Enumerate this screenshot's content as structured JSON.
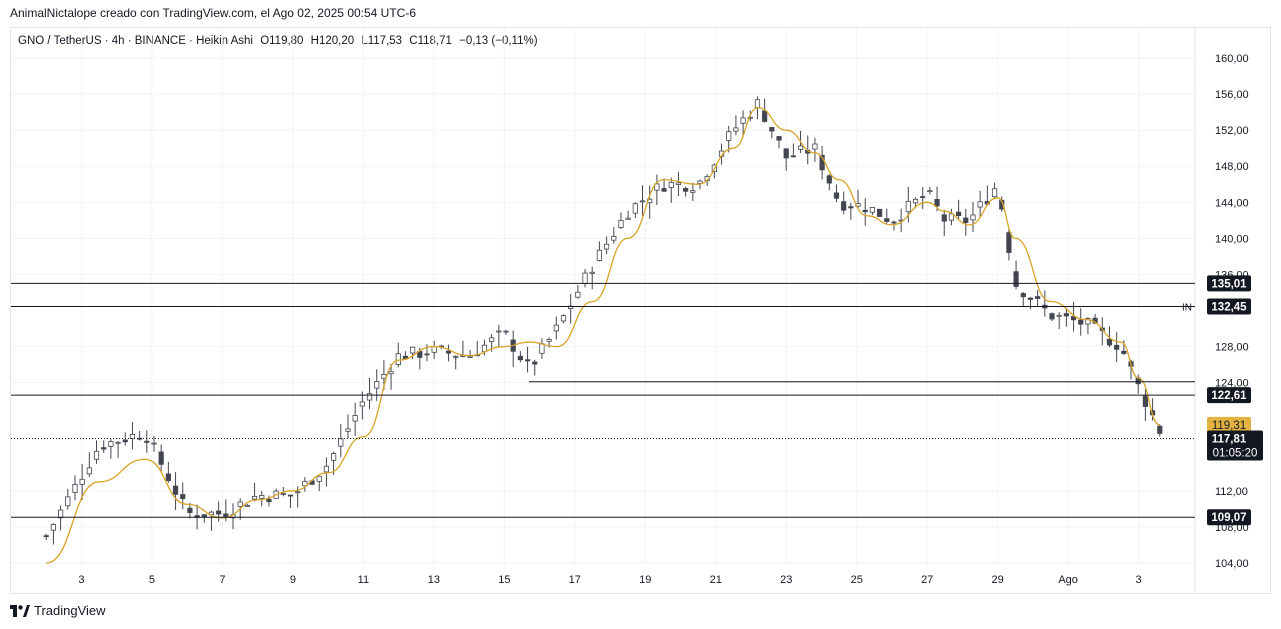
{
  "header": {
    "attribution": "AnimalNictalope creado con TradingView.com, el Ago 02, 2025 00:54 UTC-6"
  },
  "legend": {
    "symbol": "GNO / TetherUS · 4h · BINANCE · Heikin Ashi",
    "open": "O119,80",
    "high": "H120,20",
    "low": "L117,53",
    "close": "C118,71",
    "change": "−0,13 (−0,11%)"
  },
  "footer": {
    "brand": "TradingView"
  },
  "colors": {
    "bull_body": "#ffffff",
    "bear_body": "#434651",
    "candle_border": "#434651",
    "ma_line": "#d8a326",
    "level_line": "#131722",
    "price_tag_bg": "#131722",
    "ma_tag_bg": "#e3b341",
    "grid": "#f0f3fa"
  },
  "chart_data": {
    "type": "candlestick",
    "title": "GNO / TetherUS · 4h · BINANCE · Heikin Ashi",
    "ylim": [
      101,
      163
    ],
    "y_ticks": [
      "160,00",
      "156,00",
      "152,00",
      "148,00",
      "144,00",
      "140,00",
      "136,00",
      "128,00",
      "124,00",
      "112,00",
      "108,00",
      "104,00"
    ],
    "x_ticks": [
      "3",
      "5",
      "7",
      "9",
      "11",
      "13",
      "15",
      "17",
      "19",
      "21",
      "23",
      "25",
      "27",
      "29",
      "Ago",
      "3"
    ],
    "horizontal_levels": [
      {
        "label": "135,01",
        "value": 135.01,
        "badge": true
      },
      {
        "label": "132,45",
        "value": 132.45,
        "badge": true,
        "tag": "IN"
      },
      {
        "label": "",
        "value": 124.1,
        "badge": false
      },
      {
        "label": "122,61",
        "value": 122.61,
        "badge": true
      },
      {
        "label": "109,07",
        "value": 109.07,
        "badge": true
      }
    ],
    "ma_value_label": "119,31",
    "last_price_label": "117,81",
    "countdown_label": "01:05:20",
    "last_price": 117.81,
    "series": [
      {
        "name": "Heikin Ashi",
        "points": [
          [
            1,
            107.0
          ],
          [
            2.5,
            117.0
          ],
          [
            3.8,
            118.5
          ],
          [
            5,
            109.5
          ],
          [
            6,
            109.5
          ],
          [
            7,
            111.5
          ],
          [
            8,
            111.5
          ],
          [
            9,
            115.0
          ],
          [
            10,
            122.0
          ],
          [
            11,
            127.0
          ],
          [
            12,
            127.5
          ],
          [
            13,
            127.0
          ],
          [
            14,
            129.5
          ],
          [
            14.7,
            125.5
          ],
          [
            15.5,
            130.0
          ],
          [
            16.5,
            137.0
          ],
          [
            17.5,
            143.0
          ],
          [
            18.5,
            146.0
          ],
          [
            19.5,
            146.0
          ],
          [
            20.5,
            152.0
          ],
          [
            21.2,
            155.0
          ],
          [
            22,
            149.0
          ],
          [
            22.8,
            150.0
          ],
          [
            23.5,
            144.0
          ],
          [
            24.3,
            143.5
          ],
          [
            25,
            142.0
          ],
          [
            26,
            145.0
          ],
          [
            26.5,
            142.0
          ],
          [
            27.2,
            142.0
          ],
          [
            28,
            146.0
          ],
          [
            28.5,
            135.0
          ],
          [
            29.5,
            131.5
          ],
          [
            30.5,
            130.5
          ],
          [
            31.5,
            128.0
          ],
          [
            32,
            123.5
          ],
          [
            32.6,
            118.7
          ]
        ]
      },
      {
        "name": "MA",
        "points": [
          [
            1,
            104.0
          ],
          [
            2.5,
            113.0
          ],
          [
            3.8,
            115.5
          ],
          [
            5,
            110.5
          ],
          [
            6,
            109.0
          ],
          [
            7,
            111.0
          ],
          [
            8,
            112.0
          ],
          [
            9,
            114.0
          ],
          [
            10,
            118.0
          ],
          [
            11,
            126.5
          ],
          [
            12,
            128.0
          ],
          [
            13,
            127.0
          ],
          [
            14,
            128.0
          ],
          [
            14.7,
            128.5
          ],
          [
            15.5,
            128.0
          ],
          [
            16.5,
            133.0
          ],
          [
            17.5,
            140.0
          ],
          [
            18.5,
            146.5
          ],
          [
            19.5,
            146.0
          ],
          [
            20.5,
            150.0
          ],
          [
            21.2,
            154.5
          ],
          [
            22,
            152.0
          ],
          [
            22.8,
            149.5
          ],
          [
            23.5,
            146.5
          ],
          [
            24.3,
            142.5
          ],
          [
            25,
            141.5
          ],
          [
            26,
            144.0
          ],
          [
            26.5,
            143.0
          ],
          [
            27.2,
            141.5
          ],
          [
            28,
            144.5
          ],
          [
            28.5,
            140.0
          ],
          [
            29.5,
            133.0
          ],
          [
            30.5,
            131.0
          ],
          [
            31.5,
            128.5
          ],
          [
            32,
            124.5
          ],
          [
            32.6,
            119.31
          ]
        ]
      }
    ]
  }
}
